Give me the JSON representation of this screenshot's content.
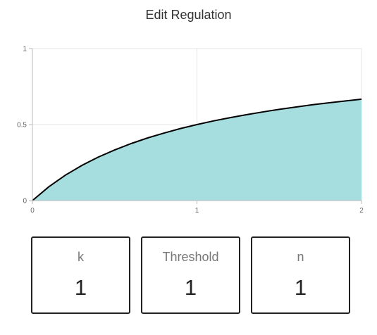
{
  "header": {
    "title": "Edit Regulation"
  },
  "chart_data": {
    "type": "area",
    "function": "x^n / (k^n + x^n)",
    "x": [
      0,
      0.1,
      0.2,
      0.3,
      0.4,
      0.5,
      0.6,
      0.7,
      0.8,
      0.9,
      1.0,
      1.1,
      1.2,
      1.3,
      1.4,
      1.5,
      1.6,
      1.7,
      1.8,
      1.9,
      2.0
    ],
    "y": [
      0,
      0.091,
      0.167,
      0.231,
      0.286,
      0.333,
      0.375,
      0.412,
      0.444,
      0.474,
      0.5,
      0.524,
      0.545,
      0.565,
      0.583,
      0.6,
      0.615,
      0.63,
      0.643,
      0.655,
      0.667
    ],
    "xlim": [
      0,
      2
    ],
    "ylim": [
      0,
      1
    ],
    "x_ticks": [
      "0",
      "1",
      "2"
    ],
    "y_ticks": [
      "0",
      "0.5",
      "1"
    ],
    "grid": true,
    "fill_color": "#a6dedf",
    "line_color": "#000000"
  },
  "params": [
    {
      "label": "k",
      "value": "1"
    },
    {
      "label": "Threshold",
      "value": "1"
    },
    {
      "label": "n",
      "value": "1"
    }
  ]
}
